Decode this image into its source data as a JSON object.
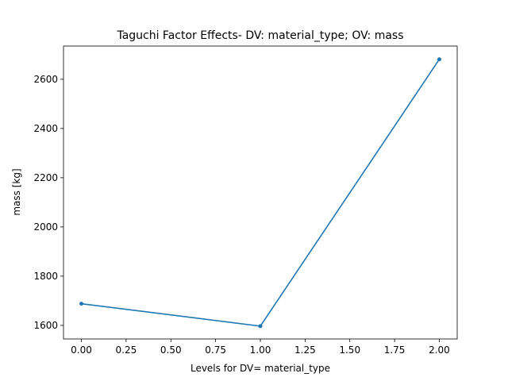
{
  "chart_data": {
    "type": "line",
    "title": "Taguchi Factor Effects- DV: material_type; OV: mass",
    "xlabel": "Levels for DV= material_type",
    "ylabel": "mass [kg]",
    "xlim": [
      -0.1,
      2.1
    ],
    "ylim": [
      1545,
      2735
    ],
    "xticks": [
      0.0,
      0.25,
      0.5,
      0.75,
      1.0,
      1.25,
      1.5,
      1.75,
      2.0
    ],
    "xtick_labels": [
      "0.00",
      "0.25",
      "0.50",
      "0.75",
      "1.00",
      "1.25",
      "1.50",
      "1.75",
      "2.00"
    ],
    "yticks": [
      1600,
      1800,
      2000,
      2200,
      2400,
      2600
    ],
    "ytick_labels": [
      "1600",
      "1800",
      "2000",
      "2200",
      "2400",
      "2600"
    ],
    "grid": false,
    "legend": "none",
    "series": [
      {
        "color": "#1f77b4",
        "x": [
          0,
          1,
          2
        ],
        "y": [
          1688,
          1597,
          2681
        ]
      }
    ]
  }
}
